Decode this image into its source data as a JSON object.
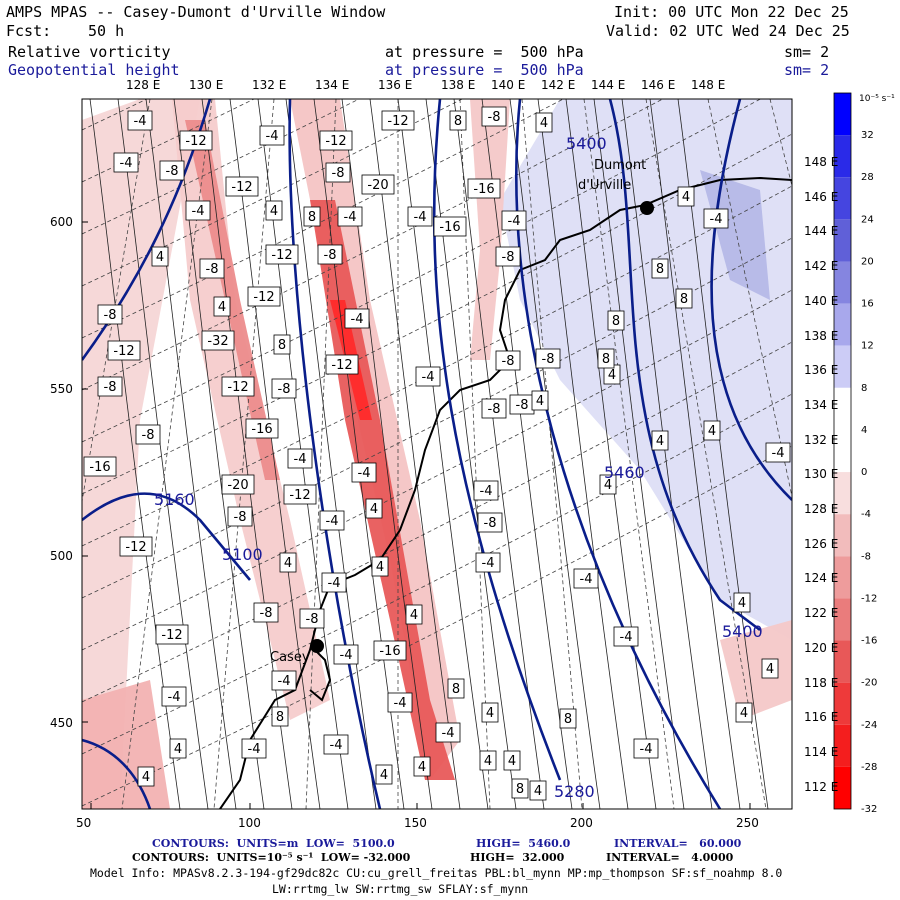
{
  "header": {
    "title_left": "AMPS MPAS -- Casey-Dumont d'Urville Window",
    "fcst_label": "Fcst:",
    "fcst_value": "50 h",
    "init": "Init: 00 UTC Mon 22 Dec 25",
    "valid": "Valid: 02 UTC Wed 24 Dec 25",
    "field1": {
      "name": "Relative vorticity",
      "level": "at pressure =  500 hPa",
      "sm": "sm= 2"
    },
    "field2": {
      "name": "Geopotential height",
      "level": "at pressure =  500 hPa",
      "sm": "sm= 2"
    }
  },
  "top_longitudes": [
    "128 E",
    "130 E",
    "132 E",
    "134 E",
    "136 E",
    "138 E",
    "140 E",
    "142 E",
    "144 E",
    "146 E",
    "148 E"
  ],
  "right_longitudes": [
    "148 E",
    "146 E",
    "144 E",
    "142 E",
    "140 E",
    "138 E",
    "136 E",
    "134 E",
    "132 E",
    "130 E",
    "128 E",
    "126 E",
    "124 E",
    "122 E",
    "120 E",
    "118 E",
    "116 E",
    "114 E",
    "112 E"
  ],
  "y_axis": [
    "600",
    "550",
    "500",
    "450"
  ],
  "x_axis": [
    "50",
    "100",
    "150",
    "200",
    "250"
  ],
  "colorbar": {
    "unit": "10⁻⁵ s⁻¹",
    "labels": [
      "32",
      "28",
      "24",
      "20",
      "16",
      "12",
      "8",
      "4",
      "0",
      "-4",
      "-8",
      "-12",
      "-16",
      "-20",
      "-24",
      "-28",
      "-32"
    ],
    "colors": [
      "#0000ff",
      "#2a2ae8",
      "#4545e0",
      "#6060d8",
      "#8585e0",
      "#a8a8ec",
      "#ccccf6",
      "#ffffff",
      "#ffffff",
      "#f8dede",
      "#f2bcbc",
      "#ee9c9c",
      "#ea7c7c",
      "#e85858",
      "#ee3a3a",
      "#f41e1e",
      "#ff0000"
    ]
  },
  "places": {
    "casey": "Casey",
    "dumont": "Dumont",
    "durville": "d'Urville"
  },
  "height_labels": [
    "5400",
    "5160",
    "5100",
    "5460",
    "5400",
    "5280"
  ],
  "vort_labels": [
    "-4",
    "-12",
    "-4",
    "-12",
    "-12",
    "8",
    "-8",
    "4",
    "-4",
    "-8",
    "-8",
    "-20",
    "-12",
    "-4",
    "4",
    "8",
    "-4",
    "-4",
    "-16",
    "-16",
    "-4",
    "4",
    "-8",
    "-8",
    "-12",
    "-8",
    "8",
    "4",
    "-12",
    "-4",
    "-8",
    "-12",
    "-32",
    "8",
    "-12",
    "-8",
    "-8",
    "-8",
    "-12",
    "-8",
    "-4",
    "4",
    "-8",
    "-16",
    "-8",
    "-8",
    "-4",
    "-4",
    "-20",
    "4",
    "-4",
    "-16",
    "4",
    "-4",
    "-12",
    "4",
    "-8",
    "-4",
    "-8",
    "-12",
    "4",
    "-4",
    "-4",
    "4",
    "-4",
    "-8",
    "4",
    "-8",
    "-12",
    "-4",
    "-4",
    "-16",
    "-4",
    "8",
    "-4",
    "-4",
    "8",
    "-4",
    "4",
    "8",
    "4",
    "4",
    "4",
    "4",
    "-4",
    "-4",
    "-4",
    "4",
    "4",
    "4",
    "8",
    "4",
    "4",
    "4",
    "-4",
    "8",
    "8",
    "8",
    "4",
    "4",
    "4"
  ],
  "footer": {
    "line1_label": "CONTOURS:  UNITS=m  LOW=  5100.0",
    "line1_high": "HIGH=  5460.0",
    "line1_int": "INTERVAL=   60.000",
    "line2_label": "CONTOURS:  UNITS=10⁻⁵ s⁻¹  LOW= -32.000",
    "line2_high": "HIGH=  32.000",
    "line2_int": "INTERVAL=   4.0000",
    "model_info": "Model Info: MPASv8.2.3-194-gf29dc82c CU:cu_grell_freitas PBL:bl_mynn MP:mp_thompson SF:sf_noahmp 8.0",
    "model_info2": "LW:rrtmg_lw SW:rrtmg_sw SFLAY:sf_mynn"
  }
}
